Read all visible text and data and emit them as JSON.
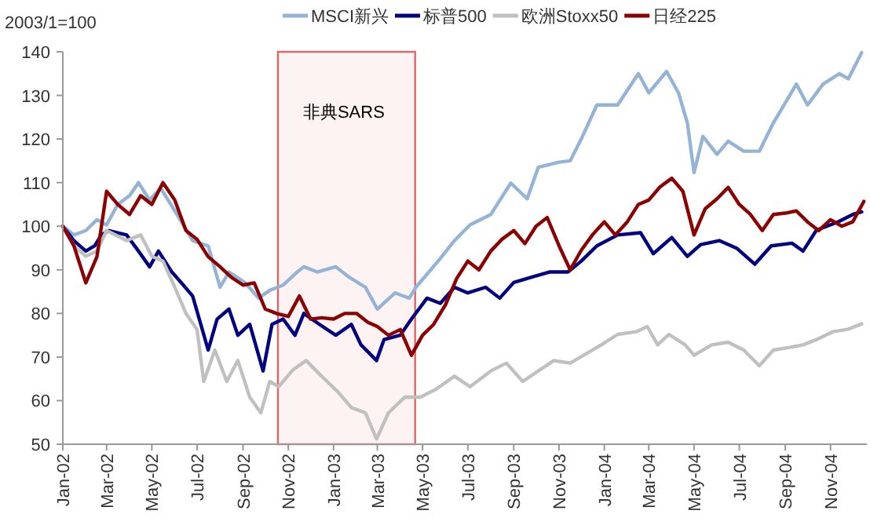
{
  "chart_data": {
    "type": "line",
    "ylabel": "2003/1=100",
    "legend": "top",
    "grid": false,
    "marker": "none",
    "line_style": "solid",
    "ylim": [
      50,
      140
    ],
    "yticks": [
      50,
      60,
      70,
      80,
      90,
      100,
      110,
      120,
      130,
      140
    ],
    "xlim": [
      "2002-01-01",
      "2004-12-20"
    ],
    "xticks": [
      {
        "value": "2002-01-01",
        "label": "Jan-02"
      },
      {
        "value": "2002-03-01",
        "label": "Mar-02"
      },
      {
        "value": "2002-05-01",
        "label": "May-02"
      },
      {
        "value": "2002-07-01",
        "label": "Jul-02"
      },
      {
        "value": "2002-09-01",
        "label": "Sep-02"
      },
      {
        "value": "2002-11-01",
        "label": "Nov-02"
      },
      {
        "value": "2003-01-01",
        "label": "Jan-03"
      },
      {
        "value": "2003-03-01",
        "label": "Mar-03"
      },
      {
        "value": "2003-05-01",
        "label": "May-03"
      },
      {
        "value": "2003-07-01",
        "label": "Jul-03"
      },
      {
        "value": "2003-09-01",
        "label": "Sep-03"
      },
      {
        "value": "2003-11-01",
        "label": "Nov-03"
      },
      {
        "value": "2004-01-01",
        "label": "Jan-04"
      },
      {
        "value": "2004-03-01",
        "label": "Mar-04"
      },
      {
        "value": "2004-05-01",
        "label": "May-04"
      },
      {
        "value": "2004-07-01",
        "label": "Jul-04"
      },
      {
        "value": "2004-09-01",
        "label": "Sep-04"
      },
      {
        "value": "2004-11-01",
        "label": "Nov-04"
      }
    ],
    "bands": [
      {
        "axis": "x",
        "from": "2002-10-18",
        "to": "2003-04-21",
        "label": "非典SARS",
        "color": "#e06666"
      }
    ],
    "series": [
      {
        "name": "MSCI新兴",
        "color": "#95b3d7",
        "x": [
          "2002-01-01",
          "2002-01-16",
          "2002-02-01",
          "2002-02-16",
          "2002-03-01",
          "2002-03-16",
          "2002-04-01",
          "2002-04-13",
          "2002-04-28",
          "2002-05-13",
          "2002-06-04",
          "2002-06-25",
          "2002-07-16",
          "2002-08-01",
          "2002-08-13",
          "2002-09-04",
          "2002-09-22",
          "2002-10-07",
          "2002-10-25",
          "2002-11-13",
          "2002-11-22",
          "2002-12-10",
          "2003-01-04",
          "2003-01-22",
          "2003-02-13",
          "2003-03-01",
          "2003-03-25",
          "2003-04-13",
          "2003-04-22",
          "2003-05-22",
          "2003-06-13",
          "2003-07-04",
          "2003-08-01",
          "2003-08-28",
          "2003-09-19",
          "2003-10-04",
          "2003-11-01",
          "2003-11-16",
          "2003-12-01",
          "2003-12-22",
          "2004-01-19",
          "2004-02-16",
          "2004-03-01",
          "2004-03-25",
          "2004-04-10",
          "2004-04-22",
          "2004-05-01",
          "2004-05-13",
          "2004-06-01",
          "2004-06-16",
          "2004-07-07",
          "2004-07-28",
          "2004-08-16",
          "2004-09-16",
          "2004-10-01",
          "2004-10-22",
          "2004-11-13",
          "2004-11-25",
          "2004-12-13"
        ],
        "values": [
          100,
          98,
          99,
          101.5,
          100.3,
          105,
          107,
          110,
          106,
          108.7,
          102.7,
          96.7,
          95.5,
          86,
          89.5,
          87,
          83.5,
          85.3,
          86.5,
          89.5,
          90.7,
          89.5,
          90.7,
          88.3,
          86,
          81,
          84.7,
          83.5,
          86,
          92,
          96.7,
          100.3,
          102.7,
          109.9,
          106.3,
          113.5,
          114.7,
          115,
          120,
          127.8,
          127.8,
          135,
          130.6,
          135.5,
          130.6,
          123.7,
          112.3,
          120.6,
          116.5,
          119.5,
          117.2,
          117.2,
          123.7,
          132.6,
          127.8,
          132.6,
          135,
          133.8,
          139.8
        ]
      },
      {
        "name": "标普500",
        "color": "#000080",
        "x": [
          "2002-01-01",
          "2002-01-16",
          "2002-02-01",
          "2002-02-13",
          "2002-02-22",
          "2002-03-04",
          "2002-03-28",
          "2002-04-13",
          "2002-04-28",
          "2002-05-10",
          "2002-05-28",
          "2002-06-10",
          "2002-06-25",
          "2002-07-04",
          "2002-07-16",
          "2002-07-28",
          "2002-08-13",
          "2002-08-25",
          "2002-09-10",
          "2002-09-28",
          "2002-10-10",
          "2002-10-25",
          "2002-11-10",
          "2002-11-22",
          "2002-12-13",
          "2003-01-04",
          "2003-01-25",
          "2003-02-07",
          "2003-02-28",
          "2003-03-10",
          "2003-04-01",
          "2003-04-16",
          "2003-05-07",
          "2003-05-25",
          "2003-06-13",
          "2003-07-01",
          "2003-07-25",
          "2003-08-13",
          "2003-09-01",
          "2003-09-25",
          "2003-10-19",
          "2003-11-13",
          "2003-12-01",
          "2003-12-22",
          "2004-01-19",
          "2004-02-19",
          "2004-03-07",
          "2004-04-01",
          "2004-04-22",
          "2004-05-10",
          "2004-06-04",
          "2004-06-28",
          "2004-07-22",
          "2004-08-13",
          "2004-09-10",
          "2004-09-25",
          "2004-10-13",
          "2004-11-10",
          "2004-12-01",
          "2004-12-13"
        ],
        "values": [
          100,
          96.7,
          94.3,
          95.5,
          98,
          99,
          98,
          94.3,
          90.7,
          94.3,
          89.5,
          87,
          84,
          78.7,
          71.6,
          78.7,
          81,
          75,
          77.5,
          66.8,
          77.5,
          78.7,
          75,
          80,
          77.5,
          75,
          77.5,
          72.8,
          69.2,
          74,
          75,
          78.7,
          83.5,
          82.3,
          86,
          84.7,
          86,
          83.5,
          87.1,
          88.3,
          89.5,
          89.5,
          92,
          95.5,
          98,
          98.5,
          93.7,
          97.4,
          93.1,
          95.8,
          96.7,
          94.9,
          91.3,
          95.5,
          96.1,
          94.3,
          99.1,
          100.9,
          102.7,
          103.3
        ]
      },
      {
        "name": "欧洲Stoxx50",
        "color": "#c0c0c0",
        "x": [
          "2002-01-01",
          "2002-01-16",
          "2002-02-01",
          "2002-02-16",
          "2002-03-01",
          "2002-03-28",
          "2002-04-16",
          "2002-05-01",
          "2002-05-16",
          "2002-06-01",
          "2002-06-16",
          "2002-07-01",
          "2002-07-10",
          "2002-07-25",
          "2002-08-10",
          "2002-08-25",
          "2002-09-10",
          "2002-09-25",
          "2002-10-07",
          "2002-10-19",
          "2002-11-07",
          "2002-11-25",
          "2002-12-16",
          "2003-01-07",
          "2003-01-25",
          "2003-02-13",
          "2003-02-28",
          "2003-03-16",
          "2003-04-07",
          "2003-04-28",
          "2003-05-19",
          "2003-06-13",
          "2003-07-04",
          "2003-08-01",
          "2003-08-22",
          "2003-09-13",
          "2003-10-04",
          "2003-10-25",
          "2003-11-16",
          "2003-12-10",
          "2003-12-28",
          "2004-01-19",
          "2004-02-13",
          "2004-02-28",
          "2004-03-13",
          "2004-03-28",
          "2004-04-19",
          "2004-05-01",
          "2004-05-25",
          "2004-06-16",
          "2004-07-07",
          "2004-07-28",
          "2004-08-16",
          "2004-09-07",
          "2004-09-25",
          "2004-10-13",
          "2004-11-04",
          "2004-11-25",
          "2004-12-13"
        ],
        "values": [
          100,
          95.5,
          93.1,
          94.3,
          99,
          96.7,
          98,
          93.1,
          92,
          86,
          80,
          76.3,
          64.4,
          71.6,
          64.4,
          69.2,
          60.8,
          57.2,
          64.4,
          63.2,
          67,
          69.2,
          65.6,
          62,
          58.4,
          57.2,
          51.2,
          57.2,
          60.8,
          60.8,
          62.6,
          65.6,
          63.2,
          66.8,
          68.6,
          64.4,
          66.8,
          69.2,
          68.6,
          71,
          72.8,
          75.2,
          75.8,
          77,
          72.8,
          75.2,
          72.8,
          70.4,
          72.8,
          73.4,
          71.6,
          68,
          71.6,
          72.2,
          72.8,
          74,
          75.8,
          76.4,
          77.6
        ]
      },
      {
        "name": "日经225",
        "color": "#8b0000",
        "x": [
          "2002-01-01",
          "2002-01-16",
          "2002-02-01",
          "2002-02-16",
          "2002-03-01",
          "2002-03-16",
          "2002-04-01",
          "2002-04-16",
          "2002-05-01",
          "2002-05-16",
          "2002-06-01",
          "2002-06-16",
          "2002-07-01",
          "2002-07-16",
          "2002-08-01",
          "2002-08-16",
          "2002-09-01",
          "2002-09-16",
          "2002-10-01",
          "2002-10-16",
          "2002-11-01",
          "2002-11-16",
          "2002-12-01",
          "2002-12-16",
          "2003-01-01",
          "2003-01-16",
          "2003-02-01",
          "2003-02-16",
          "2003-03-01",
          "2003-03-16",
          "2003-04-01",
          "2003-04-16",
          "2003-05-01",
          "2003-05-16",
          "2003-06-01",
          "2003-06-16",
          "2003-07-01",
          "2003-07-16",
          "2003-08-01",
          "2003-08-16",
          "2003-09-01",
          "2003-09-16",
          "2003-10-01",
          "2003-10-16",
          "2003-11-01",
          "2003-11-16",
          "2003-12-01",
          "2003-12-16",
          "2004-01-01",
          "2004-01-16",
          "2004-02-01",
          "2004-02-16",
          "2004-03-01",
          "2004-03-16",
          "2004-04-01",
          "2004-04-16",
          "2004-05-01",
          "2004-05-16",
          "2004-06-01",
          "2004-06-16",
          "2004-07-01",
          "2004-07-16",
          "2004-08-01",
          "2004-08-16",
          "2004-09-01",
          "2004-09-16",
          "2004-10-01",
          "2004-10-16",
          "2004-11-01",
          "2004-11-16",
          "2004-12-01",
          "2004-12-16"
        ],
        "values": [
          100,
          95.5,
          87,
          93,
          108,
          105,
          102.7,
          107,
          105,
          110,
          106,
          99,
          97,
          93,
          90.7,
          88.3,
          86.5,
          87,
          81,
          80,
          79.3,
          84,
          78.7,
          79,
          78.7,
          80,
          80,
          78,
          77,
          75,
          76.3,
          70.4,
          75,
          77.5,
          82,
          88,
          92,
          90,
          94.3,
          97,
          99,
          96,
          100,
          102,
          95.5,
          90,
          94.5,
          98,
          101,
          98,
          101,
          105,
          106,
          109,
          111,
          108,
          98,
          104,
          106.3,
          108.9,
          105,
          102.7,
          99,
          102.7,
          103,
          103.5,
          101,
          99,
          101.5,
          100,
          101,
          105.7
        ]
      }
    ]
  }
}
